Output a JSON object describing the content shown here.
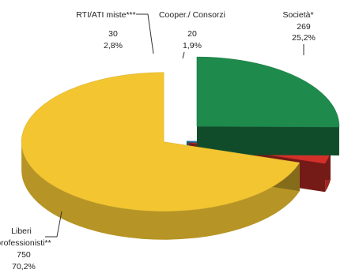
{
  "chart_data": {
    "type": "pie",
    "title": "",
    "style": "3d-exploded",
    "slices": [
      {
        "label": "Società*",
        "value": 269,
        "percent": "25,2%",
        "color": "#1e8a4c"
      },
      {
        "label": "Liberi professionisti**",
        "value": 750,
        "percent": "70,2%",
        "color": "#f2c531"
      },
      {
        "label": "RTI/ATI miste***",
        "value": 30,
        "percent": "2,8%",
        "color": "#d3302a"
      },
      {
        "label": "Cooper./ Consorzi",
        "value": 20,
        "percent": "1,9%",
        "color": "#3f9fe0"
      }
    ]
  }
}
